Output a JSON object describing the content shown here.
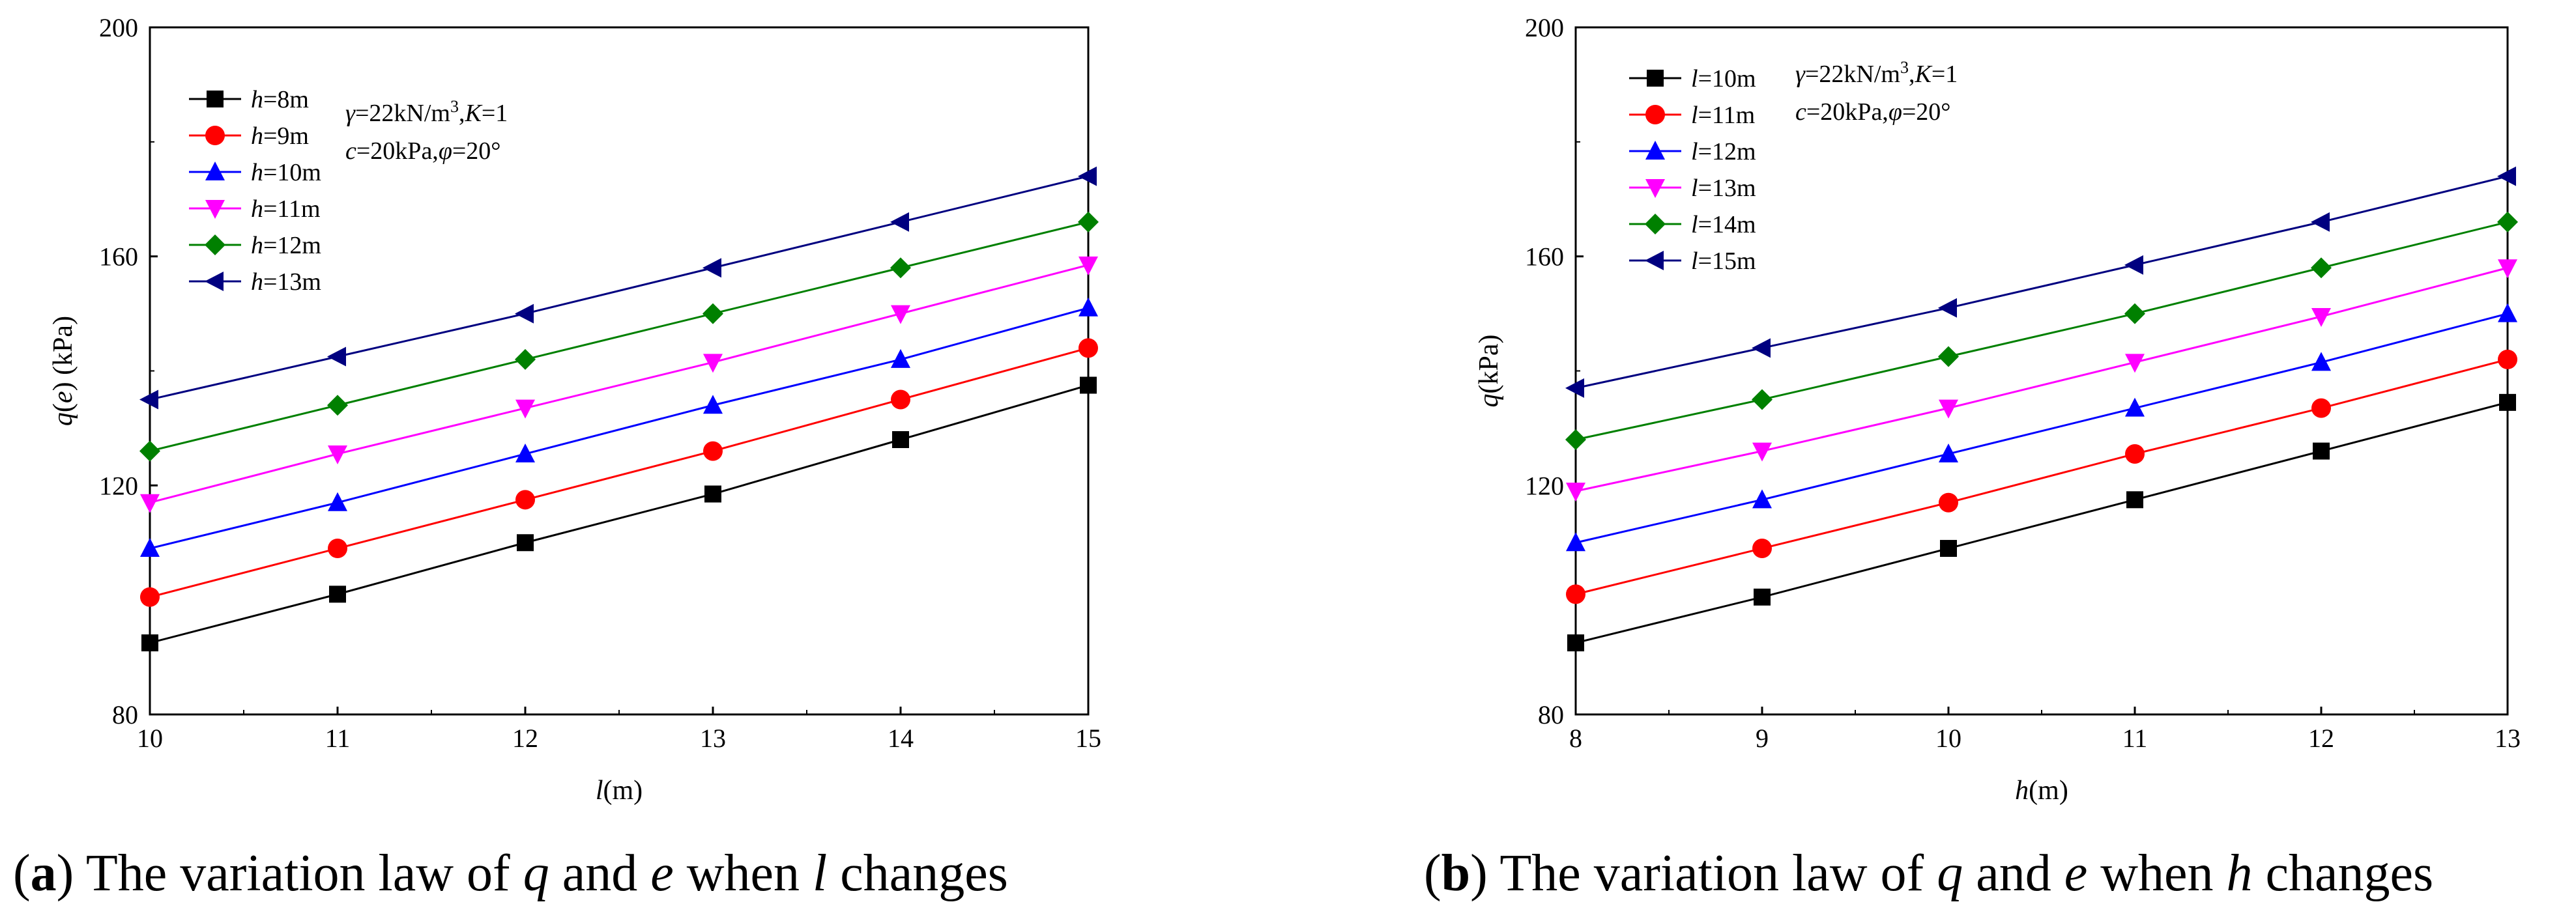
{
  "figure": {
    "captions": [
      {
        "open": "(",
        "letter": "a",
        "close": ")",
        "text_before": " The variation law of ",
        "var1": "q",
        "mid": " and ",
        "var2": "e",
        "text_after": " when ",
        "var3": "l",
        "end": " changes"
      },
      {
        "open": "(",
        "letter": "b",
        "close": ")",
        "text_before": " The variation law of ",
        "var1": "q",
        "mid": " and ",
        "var2": "e",
        "text_after": " when ",
        "var3": "h",
        "end": " changes"
      }
    ]
  },
  "chart_data": [
    {
      "type": "line",
      "title": "",
      "xlabel": {
        "var": "l",
        "unit": "(m)"
      },
      "ylabel": {
        "var": "q",
        "paren_open": "(",
        "var2": "e",
        "paren_close": ")",
        "unit": " (kPa)"
      },
      "x": [
        10,
        11,
        12,
        13,
        14,
        15
      ],
      "xlim": [
        10,
        15
      ],
      "ylim": [
        80,
        200
      ],
      "xticks": [
        "10",
        "11",
        "12",
        "13",
        "14",
        "15"
      ],
      "yticks": [
        "80",
        "120",
        "160",
        "200"
      ],
      "annotation": {
        "line1": [
          {
            "t": "γ",
            "i": true
          },
          {
            "t": "=22kN/m",
            "i": false
          },
          {
            "t": "3",
            "sup": true
          },
          {
            "t": ",",
            "i": false
          },
          {
            "t": "K",
            "i": true
          },
          {
            "t": "=1",
            "i": false
          }
        ],
        "line2": [
          {
            "t": "c",
            "i": true
          },
          {
            "t": "=20kPa,",
            "i": false
          },
          {
            "t": "φ",
            "i": true
          },
          {
            "t": "=20°",
            "i": false
          }
        ]
      },
      "series": [
        {
          "var": "h",
          "name": "=8m",
          "color": "#000000",
          "marker": "square",
          "values": [
            92.5,
            101,
            110,
            118.5,
            128,
            137.5
          ]
        },
        {
          "var": "h",
          "name": "=9m",
          "color": "#ff0000",
          "marker": "circle",
          "values": [
            100.5,
            109,
            117.5,
            126,
            135,
            144
          ]
        },
        {
          "var": "h",
          "name": "=10m",
          "color": "#0000ff",
          "marker": "triangle-up",
          "values": [
            109,
            117,
            125.5,
            134,
            142,
            151
          ]
        },
        {
          "var": "h",
          "name": "=11m",
          "color": "#ff00ff",
          "marker": "triangle-down",
          "values": [
            117,
            125.5,
            133.5,
            141.5,
            150,
            158.5
          ]
        },
        {
          "var": "h",
          "name": "=12m",
          "color": "#008000",
          "marker": "diamond",
          "values": [
            126,
            134,
            142,
            150,
            158,
            166
          ]
        },
        {
          "var": "h",
          "name": "=13m",
          "color": "#000080",
          "marker": "triangle-left",
          "values": [
            135,
            142.5,
            150,
            158,
            166,
            174
          ]
        }
      ]
    },
    {
      "type": "line",
      "title": "",
      "xlabel": {
        "var": "h",
        "unit": "(m)"
      },
      "ylabel": {
        "var": "q",
        "unit": "(kPa)"
      },
      "x": [
        8,
        9,
        10,
        11,
        12,
        13
      ],
      "xlim": [
        8,
        13
      ],
      "ylim": [
        80,
        200
      ],
      "xticks": [
        "8",
        "9",
        "10",
        "11",
        "12",
        "13"
      ],
      "yticks": [
        "80",
        "120",
        "160",
        "200"
      ],
      "annotation": {
        "line1": [
          {
            "t": "γ",
            "i": true
          },
          {
            "t": "=22kN/m",
            "i": false
          },
          {
            "t": "3",
            "sup": true
          },
          {
            "t": ",",
            "i": false
          },
          {
            "t": "K",
            "i": true
          },
          {
            "t": "=1",
            "i": false
          }
        ],
        "line2": [
          {
            "t": "c",
            "i": true
          },
          {
            "t": "=20kPa,",
            "i": false
          },
          {
            "t": "φ",
            "i": true
          },
          {
            "t": "=20°",
            "i": false
          }
        ]
      },
      "series": [
        {
          "var": "l",
          "name": "=10m",
          "color": "#000000",
          "marker": "square",
          "values": [
            92.5,
            100.5,
            109,
            117.5,
            126,
            134.5
          ]
        },
        {
          "var": "l",
          "name": "=11m",
          "color": "#ff0000",
          "marker": "circle",
          "values": [
            101,
            109,
            117,
            125.5,
            133.5,
            142
          ]
        },
        {
          "var": "l",
          "name": "=12m",
          "color": "#0000ff",
          "marker": "triangle-up",
          "values": [
            110,
            117.5,
            125.5,
            133.5,
            141.5,
            150
          ]
        },
        {
          "var": "l",
          "name": "=13m",
          "color": "#ff00ff",
          "marker": "triangle-down",
          "values": [
            119,
            126,
            133.5,
            141.5,
            149.5,
            158
          ]
        },
        {
          "var": "l",
          "name": "=14m",
          "color": "#008000",
          "marker": "diamond",
          "values": [
            128,
            135,
            142.5,
            150,
            158,
            166
          ]
        },
        {
          "var": "l",
          "name": "=15m",
          "color": "#000080",
          "marker": "triangle-left",
          "values": [
            137,
            144,
            151,
            158.5,
            166,
            174
          ]
        }
      ]
    }
  ]
}
